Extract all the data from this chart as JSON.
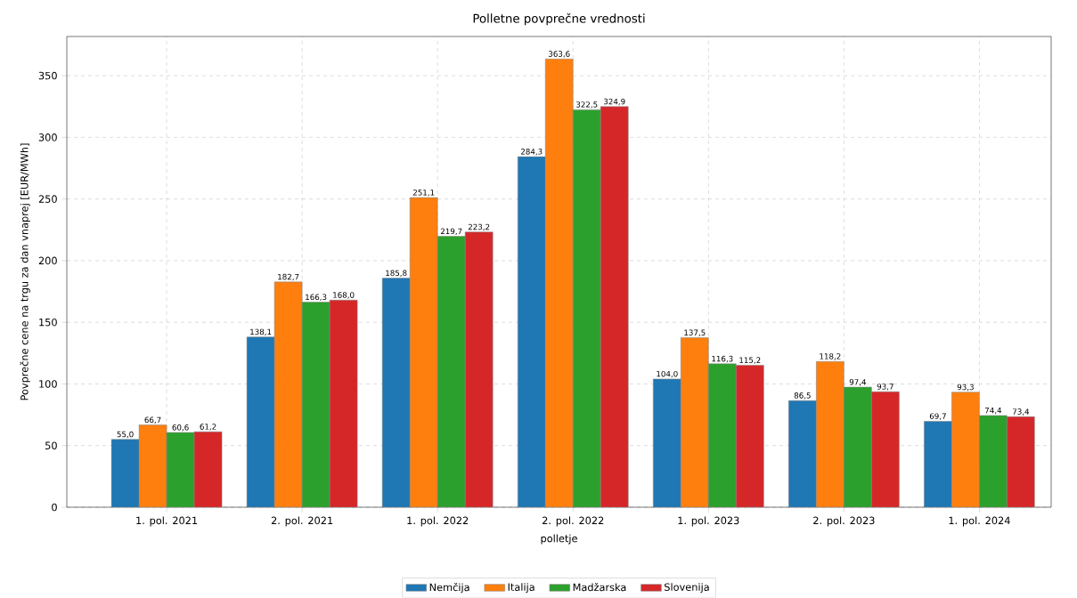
{
  "chart_data": {
    "type": "bar",
    "title": "Polletne povprečne vrednosti",
    "xlabel": "polletje",
    "ylabel": "Povprečne cene na trgu za dan vnaprej [EUR/MWh]",
    "categories": [
      "1. pol. 2021",
      "2. pol. 2021",
      "1. pol. 2022",
      "2. pol. 2022",
      "1. pol. 2023",
      "2. pol. 2023",
      "1. pol. 2024"
    ],
    "series": [
      {
        "name": "Nemčija",
        "color": "#1f77b4",
        "values": [
          55.0,
          138.1,
          185.8,
          284.3,
          104.0,
          86.5,
          69.7
        ],
        "value_labels": [
          "55,0",
          "138,1",
          "185,8",
          "284,3",
          "104,0",
          "86,5",
          "69,7"
        ]
      },
      {
        "name": "Italija",
        "color": "#ff7f0e",
        "values": [
          66.7,
          182.7,
          251.1,
          363.6,
          137.5,
          118.2,
          93.3
        ],
        "value_labels": [
          "66,7",
          "182,7",
          "251,1",
          "363,6",
          "137,5",
          "118,2",
          "93,3"
        ]
      },
      {
        "name": "Madžarska",
        "color": "#2ca02c",
        "values": [
          60.6,
          166.3,
          219.7,
          322.5,
          116.3,
          97.4,
          74.4
        ],
        "value_labels": [
          "60,6",
          "166,3",
          "219,7",
          "322,5",
          "116,3",
          "97,4",
          "74,4"
        ]
      },
      {
        "name": "Slovenija",
        "color": "#d62728",
        "values": [
          61.2,
          168.0,
          223.2,
          324.9,
          115.2,
          93.7,
          73.4
        ],
        "value_labels": [
          "61,2",
          "168,0",
          "223,2",
          "324,9",
          "115,2",
          "93,7",
          "73,4"
        ]
      }
    ],
    "ylim": [
      0,
      381.8
    ],
    "yticks": [
      0,
      50,
      100,
      150,
      200,
      250,
      300,
      350
    ],
    "grid": true,
    "legend": "bottom"
  }
}
